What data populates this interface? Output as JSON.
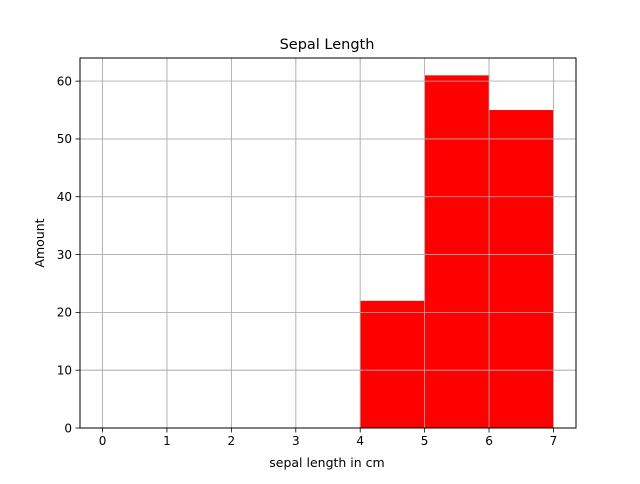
{
  "chart_data": {
    "type": "bar",
    "title": "Sepal Length",
    "xlabel": "sepal length in cm",
    "ylabel": "Amount",
    "xlim": [
      -0.35,
      7.35
    ],
    "ylim": [
      0,
      64
    ],
    "x_ticks": [
      0,
      1,
      2,
      3,
      4,
      5,
      6,
      7
    ],
    "y_ticks": [
      0,
      10,
      20,
      30,
      40,
      50,
      60
    ],
    "bins": [
      {
        "start": 4,
        "end": 5,
        "value": 22
      },
      {
        "start": 5,
        "end": 6,
        "value": 61
      },
      {
        "start": 6,
        "end": 7,
        "value": 55
      }
    ],
    "bar_color": "#ff0000",
    "grid": true
  }
}
